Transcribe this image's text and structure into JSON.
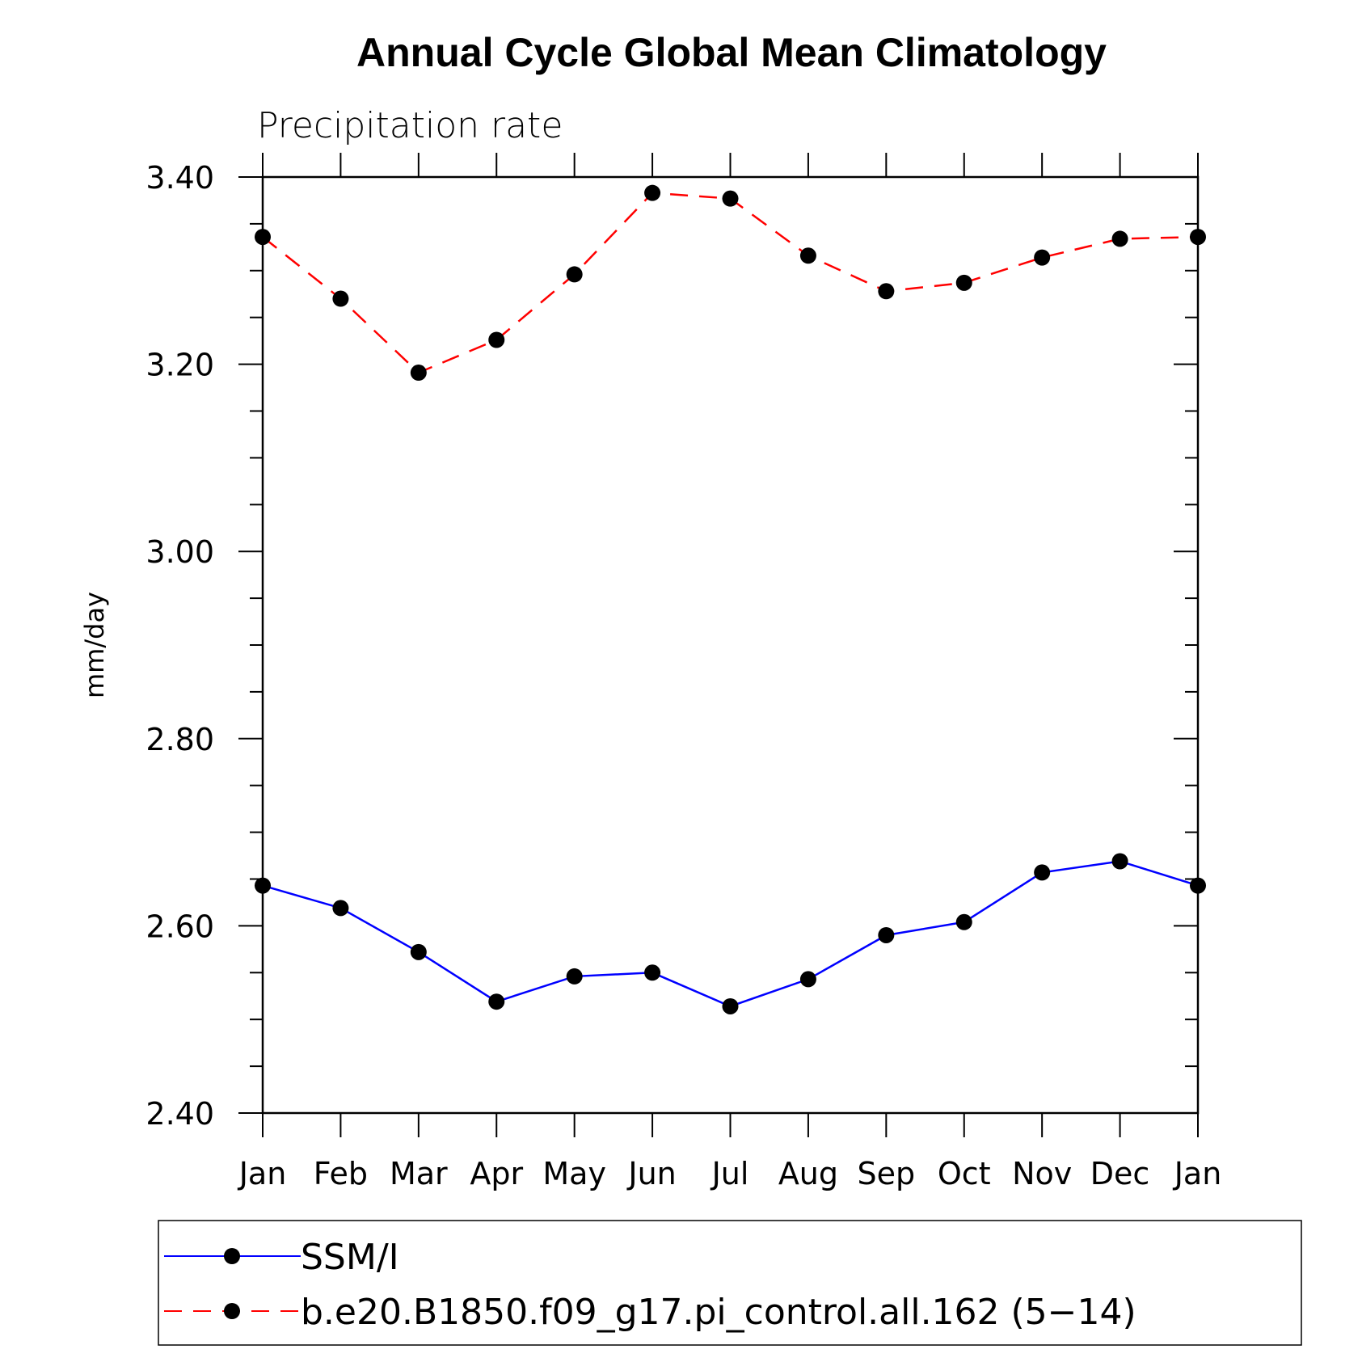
{
  "chart_data": {
    "type": "line",
    "title": "Annual Cycle Global Mean Climatology",
    "subtitle": "Precipitation rate",
    "xlabel": "",
    "ylabel": "mm/day",
    "categories": [
      "Jan",
      "Feb",
      "Mar",
      "Apr",
      "May",
      "Jun",
      "Jul",
      "Aug",
      "Sep",
      "Oct",
      "Nov",
      "Dec",
      "Jan"
    ],
    "ylim": [
      2.4,
      3.4
    ],
    "yticks": [
      "2.40",
      "2.60",
      "2.80",
      "3.00",
      "3.20",
      "3.40"
    ],
    "grid": false,
    "legend_position": "bottom",
    "series": [
      {
        "name": "SSM/I",
        "color": "#0000ff",
        "line_style": "solid",
        "marker": "filled-circle",
        "values": [
          2.643,
          2.619,
          2.572,
          2.519,
          2.546,
          2.55,
          2.514,
          2.543,
          2.59,
          2.604,
          2.657,
          2.669,
          2.643
        ]
      },
      {
        "name": "b.e20.B1850.f09_g17.pi_control.all.162 (5−14)",
        "color": "#ff0000",
        "line_style": "dashed",
        "marker": "filled-circle",
        "values": [
          3.336,
          3.27,
          3.191,
          3.226,
          3.296,
          3.383,
          3.377,
          3.316,
          3.278,
          3.287,
          3.314,
          3.334,
          3.336
        ]
      }
    ]
  }
}
